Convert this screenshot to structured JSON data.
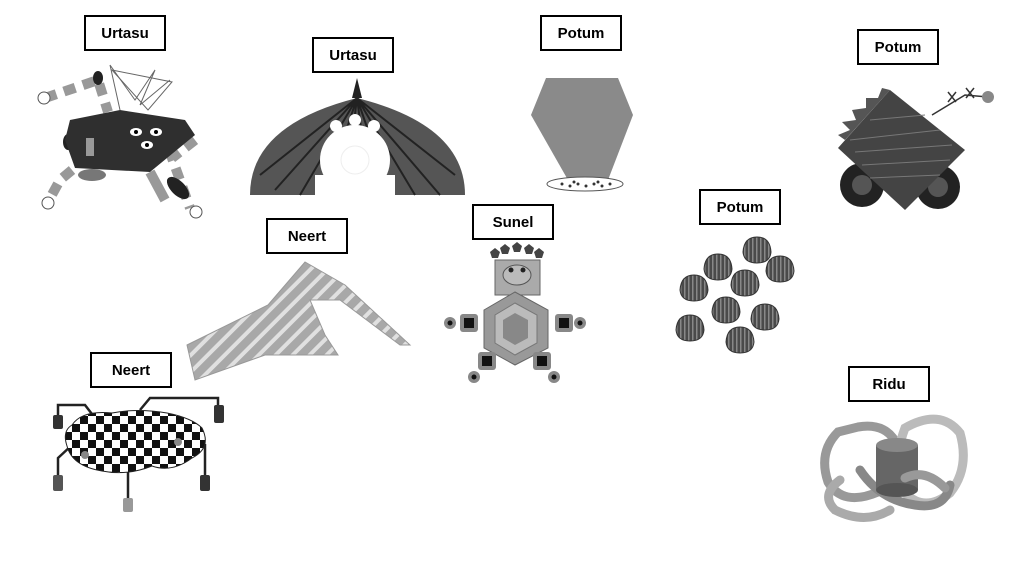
{
  "creatures": [
    {
      "name": "Urtasu"
    },
    {
      "name": "Urtasu"
    },
    {
      "name": "Potum"
    },
    {
      "name": "Potum"
    },
    {
      "name": "Neert"
    },
    {
      "name": "Sunel"
    },
    {
      "name": "Potum"
    },
    {
      "name": "Neert"
    },
    {
      "name": "Ridu"
    }
  ],
  "colors": {
    "dark": "#3a3a3a",
    "mid": "#7a7a7a",
    "light": "#b8b8b8",
    "black": "#222222"
  }
}
